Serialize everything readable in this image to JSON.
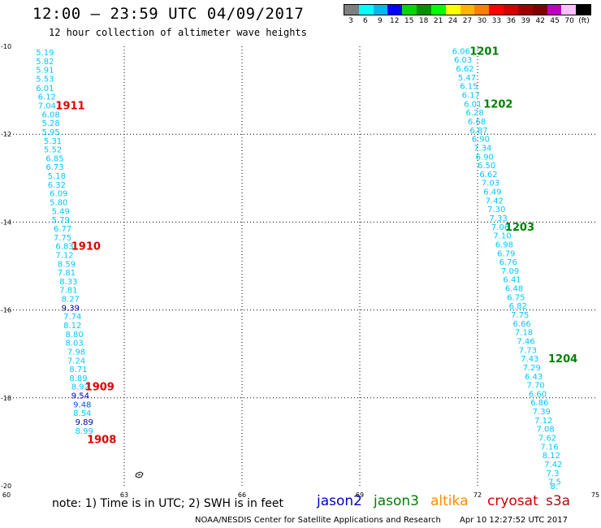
{
  "header": {
    "title": "12:00 – 23:59 UTC 04/09/2017",
    "subtitle": "12 hour collection of altimeter wave heights"
  },
  "colorbar": {
    "colors": [
      "#7f7f7f",
      "#00ffff",
      "#00b7f0",
      "#0000ff",
      "#00d800",
      "#009000",
      "#00ff00",
      "#ffff00",
      "#ffb400",
      "#ff7f00",
      "#ff0000",
      "#d40000",
      "#a00000",
      "#7f0000",
      "#bf00bf",
      "#ffc0ff",
      "#000000"
    ],
    "labels": [
      "3",
      "6",
      "9",
      "12",
      "15",
      "18",
      "21",
      "24",
      "27",
      "30",
      "33",
      "36",
      "39",
      "42",
      "45",
      "70",
      "(ft)"
    ]
  },
  "axes": {
    "x_ticks": [
      "60",
      "63",
      "66",
      "69",
      "72",
      "75"
    ],
    "y_ticks": [
      "-10",
      "-12",
      "-14",
      "-16",
      "-18",
      "-20"
    ],
    "x_range": [
      60,
      75
    ],
    "y_range": [
      -20,
      -10
    ]
  },
  "colors": {
    "cyan_low": "#00c8ff",
    "blue_mid": "#0050ff",
    "dark_blue": "#0000a0",
    "pass_red": "#e00000",
    "pass_green": "#008000"
  },
  "tracks": [
    {
      "name": "left-track",
      "values": [
        {
          "lon": 60.75,
          "lat": -10.13,
          "v": "5.19",
          "c": "cyan_low"
        },
        {
          "lon": 60.75,
          "lat": -10.33,
          "v": "5.82",
          "c": "cyan_low"
        },
        {
          "lon": 60.75,
          "lat": -10.53,
          "v": "5.91",
          "c": "cyan_low"
        },
        {
          "lon": 60.75,
          "lat": -10.73,
          "v": "5.53",
          "c": "cyan_low"
        },
        {
          "lon": 60.75,
          "lat": -10.94,
          "v": "6.01",
          "c": "cyan_low"
        },
        {
          "lon": 60.8,
          "lat": -11.14,
          "v": "6.12",
          "c": "cyan_low"
        },
        {
          "lon": 60.8,
          "lat": -11.34,
          "v": "7.04",
          "c": "cyan_low"
        },
        {
          "lon": 60.9,
          "lat": -11.54,
          "v": "6.08",
          "c": "cyan_low"
        },
        {
          "lon": 60.9,
          "lat": -11.74,
          "v": "5.28",
          "c": "cyan_low"
        },
        {
          "lon": 60.9,
          "lat": -11.94,
          "v": "5.95",
          "c": "cyan_low"
        },
        {
          "lon": 60.95,
          "lat": -12.14,
          "v": "5.31",
          "c": "cyan_low"
        },
        {
          "lon": 60.95,
          "lat": -12.34,
          "v": "5.52",
          "c": "cyan_low"
        },
        {
          "lon": 61.0,
          "lat": -12.54,
          "v": "6.85",
          "c": "cyan_low"
        },
        {
          "lon": 61.0,
          "lat": -12.74,
          "v": "6.73",
          "c": "cyan_low"
        },
        {
          "lon": 61.05,
          "lat": -12.94,
          "v": "5.18",
          "c": "cyan_low"
        },
        {
          "lon": 61.05,
          "lat": -13.14,
          "v": "6.32",
          "c": "cyan_low"
        },
        {
          "lon": 61.1,
          "lat": -13.34,
          "v": "6.09",
          "c": "cyan_low"
        },
        {
          "lon": 61.1,
          "lat": -13.54,
          "v": "5.80",
          "c": "cyan_low"
        },
        {
          "lon": 61.15,
          "lat": -13.74,
          "v": "5.49",
          "c": "cyan_low"
        },
        {
          "lon": 61.15,
          "lat": -13.94,
          "v": "5.79",
          "c": "cyan_low"
        },
        {
          "lon": 61.2,
          "lat": -14.14,
          "v": "6.77",
          "c": "cyan_low"
        },
        {
          "lon": 61.2,
          "lat": -14.34,
          "v": "7.75",
          "c": "cyan_low"
        },
        {
          "lon": 61.25,
          "lat": -14.54,
          "v": "6.83",
          "c": "cyan_low"
        },
        {
          "lon": 61.25,
          "lat": -14.74,
          "v": "7.12",
          "c": "cyan_low"
        },
        {
          "lon": 61.3,
          "lat": -14.94,
          "v": "8.59",
          "c": "cyan_low"
        },
        {
          "lon": 61.3,
          "lat": -15.14,
          "v": "7.81",
          "c": "cyan_low"
        },
        {
          "lon": 61.35,
          "lat": -15.34,
          "v": "8.33",
          "c": "cyan_low"
        },
        {
          "lon": 61.35,
          "lat": -15.54,
          "v": "7.81",
          "c": "cyan_low"
        },
        {
          "lon": 61.4,
          "lat": -15.74,
          "v": "8.27",
          "c": "cyan_low"
        },
        {
          "lon": 61.4,
          "lat": -15.94,
          "v": "9.39",
          "c": "dark_blue"
        },
        {
          "lon": 61.45,
          "lat": -16.14,
          "v": "7.74",
          "c": "cyan_low"
        },
        {
          "lon": 61.45,
          "lat": -16.34,
          "v": "8.12",
          "c": "cyan_low"
        },
        {
          "lon": 61.5,
          "lat": -16.54,
          "v": "8.80",
          "c": "cyan_low"
        },
        {
          "lon": 61.5,
          "lat": -16.74,
          "v": "8.03",
          "c": "cyan_low"
        },
        {
          "lon": 61.55,
          "lat": -16.94,
          "v": "7.98",
          "c": "cyan_low"
        },
        {
          "lon": 61.55,
          "lat": -17.14,
          "v": "7.24",
          "c": "cyan_low"
        },
        {
          "lon": 61.6,
          "lat": -17.34,
          "v": "8.71",
          "c": "cyan_low"
        },
        {
          "lon": 61.6,
          "lat": -17.54,
          "v": "8.89",
          "c": "cyan_low"
        },
        {
          "lon": 61.65,
          "lat": -17.74,
          "v": "8.92",
          "c": "cyan_low"
        },
        {
          "lon": 61.65,
          "lat": -17.94,
          "v": "9.54",
          "c": "dark_blue"
        },
        {
          "lon": 61.7,
          "lat": -18.14,
          "v": "9.48",
          "c": "blue_mid"
        },
        {
          "lon": 61.7,
          "lat": -18.34,
          "v": "8.54",
          "c": "cyan_low"
        },
        {
          "lon": 61.75,
          "lat": -18.54,
          "v": "9.89",
          "c": "dark_blue"
        },
        {
          "lon": 61.75,
          "lat": -18.74,
          "v": "8.99",
          "c": "cyan_low"
        }
      ]
    },
    {
      "name": "right-track",
      "values": [
        {
          "lon": 71.35,
          "lat": -10.1,
          "v": "6.06",
          "c": "cyan_low"
        },
        {
          "lon": 71.4,
          "lat": -10.3,
          "v": "6.03",
          "c": "cyan_low"
        },
        {
          "lon": 71.45,
          "lat": -10.5,
          "v": "6.62",
          "c": "cyan_low"
        },
        {
          "lon": 71.5,
          "lat": -10.7,
          "v": "5.47",
          "c": "cyan_low"
        },
        {
          "lon": 71.55,
          "lat": -10.9,
          "v": "6.15",
          "c": "cyan_low"
        },
        {
          "lon": 71.6,
          "lat": -11.1,
          "v": "6.17",
          "c": "cyan_low"
        },
        {
          "lon": 71.65,
          "lat": -11.3,
          "v": "6.01",
          "c": "cyan_low"
        },
        {
          "lon": 71.7,
          "lat": -11.5,
          "v": "6.28",
          "c": "cyan_low"
        },
        {
          "lon": 71.75,
          "lat": -11.7,
          "v": "6.68",
          "c": "cyan_low"
        },
        {
          "lon": 71.8,
          "lat": -11.9,
          "v": "6.87",
          "c": "cyan_low"
        },
        {
          "lon": 71.85,
          "lat": -12.1,
          "v": "6.90",
          "c": "cyan_low"
        },
        {
          "lon": 71.9,
          "lat": -12.3,
          "v": "7.34",
          "c": "cyan_low"
        },
        {
          "lon": 71.95,
          "lat": -12.5,
          "v": "6.90",
          "c": "cyan_low"
        },
        {
          "lon": 72.0,
          "lat": -12.7,
          "v": "6.50",
          "c": "cyan_low"
        },
        {
          "lon": 72.05,
          "lat": -12.9,
          "v": "6.62",
          "c": "cyan_low"
        },
        {
          "lon": 72.1,
          "lat": -13.1,
          "v": "7.03",
          "c": "cyan_low"
        },
        {
          "lon": 72.15,
          "lat": -13.3,
          "v": "6.49",
          "c": "cyan_low"
        },
        {
          "lon": 72.2,
          "lat": -13.5,
          "v": "7.42",
          "c": "cyan_low"
        },
        {
          "lon": 72.25,
          "lat": -13.7,
          "v": "7.30",
          "c": "cyan_low"
        },
        {
          "lon": 72.3,
          "lat": -13.9,
          "v": "7.33",
          "c": "cyan_low"
        },
        {
          "lon": 72.35,
          "lat": -14.1,
          "v": "7.06",
          "c": "cyan_low"
        },
        {
          "lon": 72.4,
          "lat": -14.3,
          "v": "7.10",
          "c": "cyan_low"
        },
        {
          "lon": 72.45,
          "lat": -14.5,
          "v": "6.98",
          "c": "cyan_low"
        },
        {
          "lon": 72.5,
          "lat": -14.7,
          "v": "6.79",
          "c": "cyan_low"
        },
        {
          "lon": 72.55,
          "lat": -14.9,
          "v": "6.76",
          "c": "cyan_low"
        },
        {
          "lon": 72.6,
          "lat": -15.1,
          "v": "7.09",
          "c": "cyan_low"
        },
        {
          "lon": 72.65,
          "lat": -15.3,
          "v": "6.41",
          "c": "cyan_low"
        },
        {
          "lon": 72.7,
          "lat": -15.5,
          "v": "6.48",
          "c": "cyan_low"
        },
        {
          "lon": 72.75,
          "lat": -15.7,
          "v": "6.75",
          "c": "cyan_low"
        },
        {
          "lon": 72.8,
          "lat": -15.9,
          "v": "6.82",
          "c": "cyan_low"
        },
        {
          "lon": 72.85,
          "lat": -16.1,
          "v": "7.75",
          "c": "cyan_low"
        },
        {
          "lon": 72.9,
          "lat": -16.3,
          "v": "6.66",
          "c": "cyan_low"
        },
        {
          "lon": 72.95,
          "lat": -16.5,
          "v": "7.18",
          "c": "cyan_low"
        },
        {
          "lon": 73.0,
          "lat": -16.7,
          "v": "7.46",
          "c": "cyan_low"
        },
        {
          "lon": 73.05,
          "lat": -16.9,
          "v": "7.73",
          "c": "cyan_low"
        },
        {
          "lon": 73.1,
          "lat": -17.1,
          "v": "7.43",
          "c": "cyan_low"
        },
        {
          "lon": 73.15,
          "lat": -17.3,
          "v": "7.29",
          "c": "cyan_low"
        },
        {
          "lon": 73.2,
          "lat": -17.5,
          "v": "6.43",
          "c": "cyan_low"
        },
        {
          "lon": 73.25,
          "lat": -17.7,
          "v": "7.70",
          "c": "cyan_low"
        },
        {
          "lon": 73.3,
          "lat": -17.9,
          "v": "6.60",
          "c": "cyan_low"
        },
        {
          "lon": 73.35,
          "lat": -18.1,
          "v": "6.86",
          "c": "cyan_low"
        },
        {
          "lon": 73.4,
          "lat": -18.3,
          "v": "7.39",
          "c": "cyan_low"
        },
        {
          "lon": 73.45,
          "lat": -18.5,
          "v": "7.12",
          "c": "cyan_low"
        },
        {
          "lon": 73.5,
          "lat": -18.7,
          "v": "7.08",
          "c": "cyan_low"
        },
        {
          "lon": 73.55,
          "lat": -18.9,
          "v": "7.62",
          "c": "cyan_low"
        },
        {
          "lon": 73.6,
          "lat": -19.1,
          "v": "7.16",
          "c": "cyan_low"
        },
        {
          "lon": 73.65,
          "lat": -19.3,
          "v": "8.12",
          "c": "cyan_low"
        },
        {
          "lon": 73.7,
          "lat": -19.5,
          "v": "7.42",
          "c": "cyan_low"
        },
        {
          "lon": 73.75,
          "lat": -19.7,
          "v": "7.3",
          "c": "cyan_low"
        },
        {
          "lon": 73.8,
          "lat": -19.9,
          "v": "7.5",
          "c": "cyan_low"
        },
        {
          "lon": 73.85,
          "lat": -20.0,
          "v": "8.",
          "c": "cyan_low"
        }
      ]
    }
  ],
  "pass_labels": [
    {
      "text": "1911",
      "lon": 61.25,
      "lat": -11.34,
      "c": "pass_red"
    },
    {
      "text": "1910",
      "lon": 61.65,
      "lat": -14.54,
      "c": "pass_red"
    },
    {
      "text": "1909",
      "lon": 62.0,
      "lat": -17.74,
      "c": "pass_red"
    },
    {
      "text": "1908",
      "lon": 62.05,
      "lat": -18.94,
      "c": "pass_red"
    },
    {
      "text": "1201",
      "lon": 71.8,
      "lat": -10.1,
      "c": "pass_green"
    },
    {
      "text": "1202",
      "lon": 72.15,
      "lat": -11.3,
      "c": "pass_green"
    },
    {
      "text": "1203",
      "lon": 72.7,
      "lat": -14.1,
      "c": "pass_green"
    },
    {
      "text": "1204",
      "lon": 73.8,
      "lat": -17.1,
      "c": "pass_green"
    }
  ],
  "island_label": {
    "text": "",
    "lon": 63.2,
    "lat": -19.82
  },
  "footer": {
    "note": "note:  1) Time is in UTC;  2) SWH is in feet",
    "satellites": [
      {
        "name": "jason2",
        "color": "#0000cc"
      },
      {
        "name": "jason3",
        "color": "#008000"
      },
      {
        "name": "altika",
        "color": "#ff8c00"
      },
      {
        "name": "cryosat",
        "color": "#cc0000"
      },
      {
        "name": "s3a",
        "color": "#a01010"
      }
    ],
    "credit": "NOAA/NESDIS Center for Satellite Applications and Research",
    "timestamp": "Apr 10 12:27:52 UTC 2017"
  }
}
